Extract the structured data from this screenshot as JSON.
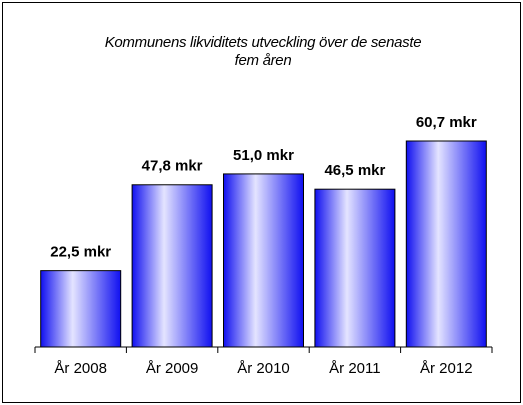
{
  "chart_data": {
    "type": "bar",
    "title": "Kommunens likviditets utveckling över de senaste fem åren",
    "categories": [
      "År 2008",
      "År 2009",
      "År 2010",
      "År 2011",
      "År 2012"
    ],
    "values": [
      22.5,
      47.8,
      51.0,
      46.5,
      60.7
    ],
    "value_labels": [
      "22,5 mkr",
      "47,8 mkr",
      "51,0 mkr",
      "46,5 mkr",
      "60,7 mkr"
    ],
    "color": "#1010f0"
  }
}
